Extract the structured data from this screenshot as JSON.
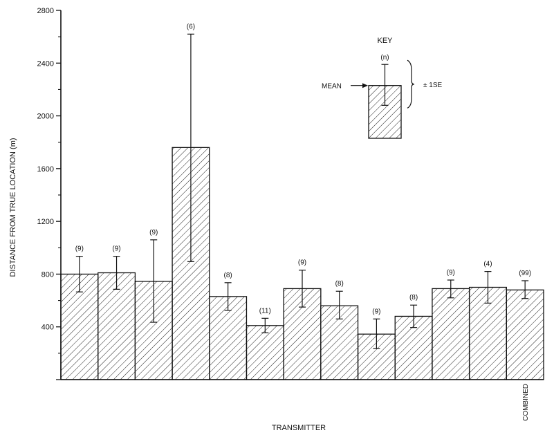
{
  "chart_data": {
    "type": "bar",
    "categories": [
      "",
      "",
      "",
      "",
      "",
      "",
      "",
      "",
      "",
      "",
      "",
      "",
      "COMBINED"
    ],
    "values": [
      800,
      810,
      745,
      1760,
      630,
      410,
      690,
      560,
      345,
      480,
      690,
      700,
      680
    ],
    "se_low": [
      665,
      685,
      435,
      895,
      525,
      355,
      550,
      460,
      235,
      395,
      620,
      580,
      615
    ],
    "se_high": [
      935,
      935,
      1060,
      2620,
      735,
      465,
      830,
      670,
      460,
      565,
      755,
      820,
      750
    ],
    "n_labels": [
      "(9)",
      "(9)",
      "(9)",
      "(6)",
      "(8)",
      "(11)",
      "(9)",
      "(8)",
      "(9)",
      "(8)",
      "(9)",
      "(4)",
      "(99)"
    ],
    "ylabel": "DISTANCE FROM TRUE LOCATION (m)",
    "xlabel": "TRANSMITTER",
    "ylim": [
      0,
      2800
    ],
    "y_ticks": [
      0,
      400,
      800,
      1200,
      1600,
      2000,
      2400,
      2800
    ],
    "y_tick_labels": [
      "",
      "400",
      "800",
      "1200",
      "1600",
      "2000",
      "2400",
      "2800"
    ],
    "grid": false,
    "key": {
      "title": "KEY",
      "n_label": "(n)",
      "mean_label": "MEAN",
      "se_label": "± 1SE",
      "example_value": 2230,
      "example_se_low": 2080,
      "example_se_high": 2390,
      "example_bottom": 1830
    }
  }
}
